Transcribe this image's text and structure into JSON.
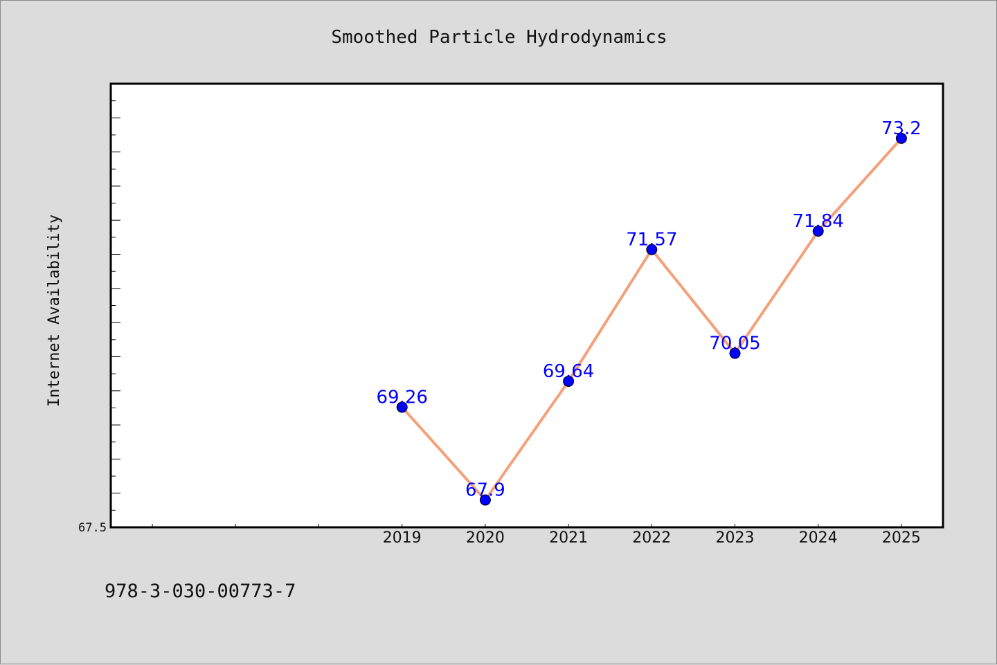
{
  "chart_data": {
    "type": "line",
    "title": "Smoothed Particle Hydrodynamics",
    "xlabel": "",
    "ylabel": "Internet Availability",
    "categories": [
      "2019",
      "2020",
      "2021",
      "2022",
      "2023",
      "2024",
      "2025"
    ],
    "series": [
      {
        "values": [
          69.26,
          67.9,
          69.64,
          71.57,
          70.05,
          71.84,
          73.2
        ],
        "labels": [
          "69.26",
          "67.9",
          "69.64",
          "71.57",
          "70.05",
          "71.84",
          "73.2"
        ],
        "line_color": "#f4a07a",
        "marker_color": "#0000ff"
      }
    ],
    "ylim": [
      67.5,
      74.0
    ],
    "y_tick_labels": [
      "67.5"
    ],
    "xlim": [
      2015.5,
      2025.5
    ],
    "grid": false,
    "legend": "none"
  },
  "footer_text": "978-3-030-00773-7",
  "colors": {
    "background": "#dcdcdc",
    "plot_background": "#ffffff",
    "axes": "#000000",
    "data_labels": "#0000ff"
  }
}
